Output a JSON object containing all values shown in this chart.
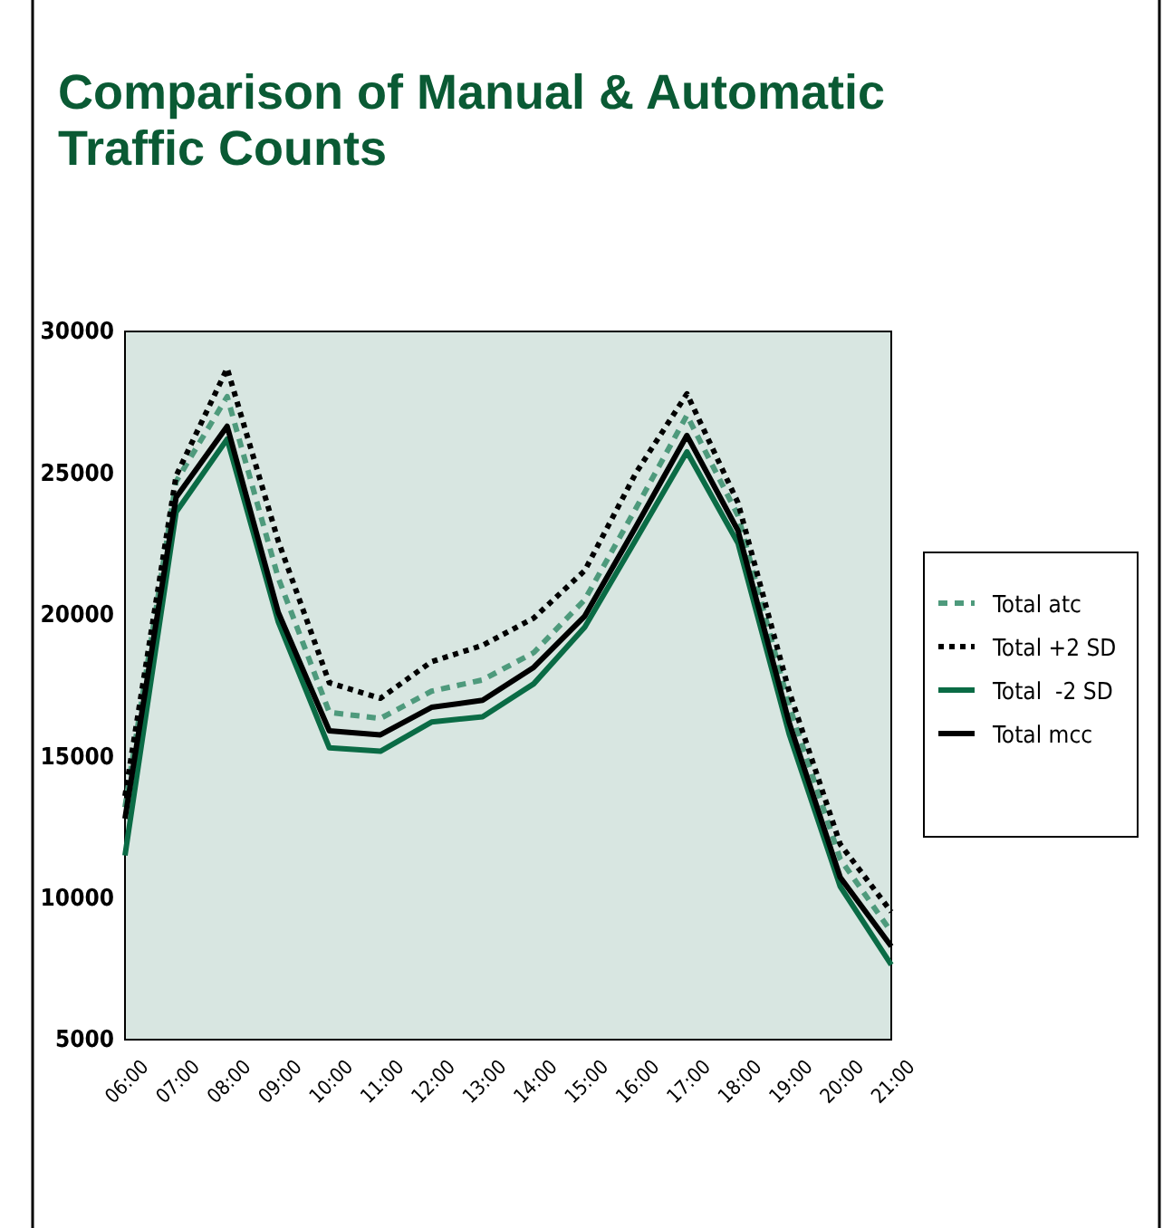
{
  "chart_data": {
    "type": "line",
    "title": "Comparison of Manual & Automatic Traffic Counts",
    "categories": [
      "06:00",
      "07:00",
      "08:00",
      "09:00",
      "10:00",
      "11:00",
      "12:00",
      "13:00",
      "14:00",
      "15:00",
      "16:00",
      "17:00",
      "18:00",
      "19:00",
      "20:00",
      "21:00"
    ],
    "series": [
      {
        "name": "Total atc",
        "color": "#4e9a7c",
        "line_style": "dashed",
        "values": [
          13200,
          24700,
          27700,
          21300,
          16550,
          16340,
          17300,
          17700,
          18660,
          20530,
          23750,
          27040,
          23500,
          16800,
          11380,
          8800
        ]
      },
      {
        "name": "Total +2 SD",
        "color": "#000000",
        "line_style": "dotted",
        "values": [
          13600,
          24900,
          28700,
          22600,
          17600,
          17050,
          18340,
          18920,
          19880,
          21560,
          25000,
          27800,
          23950,
          17300,
          11900,
          9510
        ]
      },
      {
        "name": "Total  -2 SD",
        "color": "#0a6b45",
        "line_style": "solid",
        "values": [
          11500,
          23620,
          26200,
          19750,
          15300,
          15180,
          16210,
          16400,
          17560,
          19560,
          22650,
          25750,
          22530,
          15800,
          10410,
          7640
        ]
      },
      {
        "name": "Total mcc",
        "color": "#000000",
        "line_style": "solid",
        "values": [
          12800,
          24140,
          26650,
          20080,
          15900,
          15760,
          16730,
          16980,
          18140,
          19950,
          23100,
          26330,
          22970,
          16200,
          10730,
          8290
        ]
      }
    ],
    "ylim": [
      5000,
      30000
    ],
    "yticks": [
      5000,
      10000,
      15000,
      20000,
      25000,
      30000
    ],
    "grid": false,
    "legend": "right",
    "marker": "none"
  }
}
